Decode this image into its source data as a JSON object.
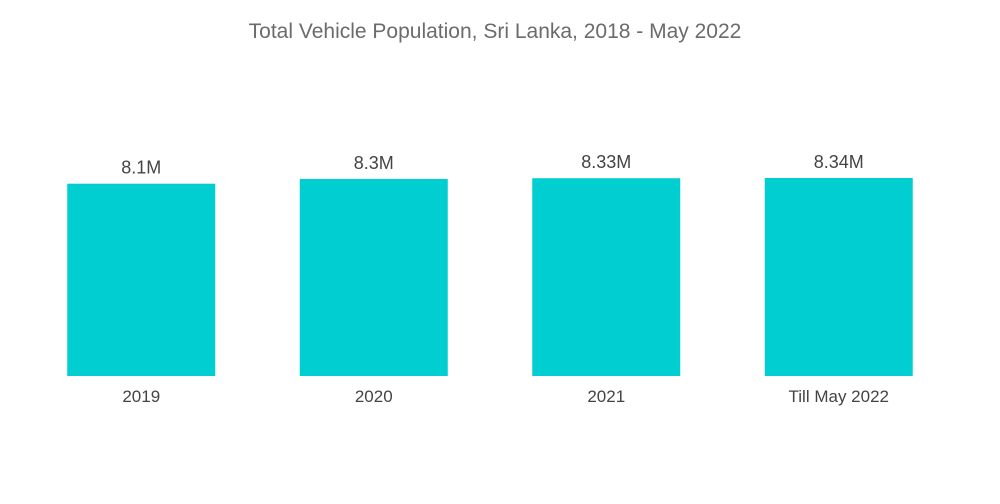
{
  "chart_data": {
    "type": "bar",
    "title": "Total Vehicle Population, Sri Lanka, 2018 - May 2022",
    "xlabel": "",
    "ylabel": "",
    "categories": [
      "2019",
      "2020",
      "2021",
      "Till May 2022"
    ],
    "values": [
      8.1,
      8.3,
      8.33,
      8.34
    ],
    "data_labels": [
      "8.1M",
      "8.3M",
      "8.33M",
      "8.34M"
    ],
    "unit": "M",
    "ylim": [
      0,
      8.34
    ],
    "grid": false,
    "legend": "none",
    "bar_color": "#00CED1"
  }
}
